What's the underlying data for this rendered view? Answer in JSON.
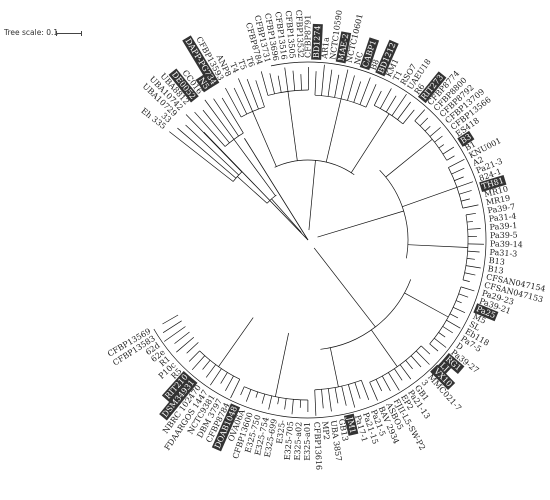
{
  "tree_scale": {
    "label": "Tree scale: 0.1"
  },
  "tree": {
    "leaves": [
      {
        "label": "Eh 335",
        "hl": false
      },
      {
        "label": "33",
        "hl": false
      },
      {
        "label": "UBA10729",
        "hl": false
      },
      {
        "label": "UBA10742",
        "hl": false
      },
      {
        "label": "UBA8812",
        "hl": false
      },
      {
        "label": "DE0052",
        "hl": true
      },
      {
        "label": "CC016",
        "hl": false
      },
      {
        "label": "N5",
        "hl": true
      },
      {
        "label": "DAPP-PG734",
        "hl": true
      },
      {
        "label": "CFBP13593",
        "hl": false
      },
      {
        "label": "ANP8",
        "hl": false
      },
      {
        "label": "T4",
        "hl": false
      },
      {
        "label": "T5",
        "hl": false
      },
      {
        "label": "T6",
        "hl": false
      },
      {
        "label": "CFBP8784",
        "hl": false
      },
      {
        "label": "CFBP13731",
        "hl": false
      },
      {
        "label": "CFBP13696",
        "hl": false
      },
      {
        "label": "CFBP13516",
        "hl": false
      },
      {
        "label": "CFBP13505",
        "hl": false
      },
      {
        "label": "CFBP13532",
        "hl": false
      },
      {
        "label": "CFBP8791",
        "hl": false
      },
      {
        "label": "BD1274",
        "hl": true
      },
      {
        "label": "AR1a",
        "hl": false
      },
      {
        "label": "NCTC10590",
        "hl": false
      },
      {
        "label": "MAE-2",
        "hl": true
      },
      {
        "label": "NCTC10601",
        "hl": false
      },
      {
        "label": "NC",
        "hl": false
      },
      {
        "label": "CABP1",
        "hl": true
      },
      {
        "label": "B8",
        "hl": false
      },
      {
        "label": "BD1212",
        "hl": true
      },
      {
        "label": "KM1",
        "hl": false
      },
      {
        "label": "T1",
        "hl": false
      },
      {
        "label": "RSO7",
        "hl": false
      },
      {
        "label": "UAEU18",
        "hl": false
      },
      {
        "label": "R6",
        "hl": false
      },
      {
        "label": "RIT273",
        "hl": true
      },
      {
        "label": "CFBP8774",
        "hl": false
      },
      {
        "label": "CFBP8800",
        "hl": false
      },
      {
        "label": "CFBP8792",
        "hl": false
      },
      {
        "label": "CFBP13709",
        "hl": false
      },
      {
        "label": "CFBP13566",
        "hl": false
      },
      {
        "label": "ES418",
        "hl": false
      },
      {
        "label": "B3",
        "hl": true
      },
      {
        "label": "B1",
        "hl": false
      },
      {
        "label": "KNU001",
        "hl": false
      },
      {
        "label": "A2",
        "hl": false
      },
      {
        "label": "Pa21-3",
        "hl": false
      },
      {
        "label": "824-1",
        "hl": false
      },
      {
        "label": "TH81",
        "hl": true
      },
      {
        "label": "MR10",
        "hl": false
      },
      {
        "label": "MR19",
        "hl": false
      },
      {
        "label": "Pa39-7",
        "hl": false
      },
      {
        "label": "Pa31-4",
        "hl": false
      },
      {
        "label": "Pa39-1",
        "hl": false
      },
      {
        "label": "Pa39-5",
        "hl": false
      },
      {
        "label": "Pa39-14",
        "hl": false
      },
      {
        "label": "Pa31-3",
        "hl": false
      },
      {
        "label": "B13",
        "hl": false
      },
      {
        "label": "B13",
        "hl": false
      },
      {
        "label": "CFSAN047154",
        "hl": false
      },
      {
        "label": "CFSAN047153",
        "hl": false
      },
      {
        "label": "Pa29-23",
        "hl": false
      },
      {
        "label": "Pa39-21",
        "hl": false
      },
      {
        "label": "Pa25",
        "hl": true
      },
      {
        "label": "M5",
        "hl": false
      },
      {
        "label": "SL",
        "hl": false
      },
      {
        "label": "Eb118",
        "hl": false
      },
      {
        "label": "Pa7-5",
        "hl": false
      },
      {
        "label": "D",
        "hl": false
      },
      {
        "label": "Pa39-27",
        "hl": false
      },
      {
        "label": "RG1",
        "hl": true
      },
      {
        "label": "LJ",
        "hl": true
      },
      {
        "label": "VX10",
        "hl": true
      },
      {
        "label": "MMC021-7",
        "hl": false
      },
      {
        "label": "3",
        "hl": false
      },
      {
        "label": "GB1",
        "hl": false
      },
      {
        "label": "Pa21-13",
        "hl": false
      },
      {
        "label": "EP2",
        "hl": false
      },
      {
        "label": "FJII-L5-SW-P2",
        "hl": false
      },
      {
        "label": "ASBO5",
        "hl": false
      },
      {
        "label": "BAV 2934",
        "hl": false
      },
      {
        "label": "Pa21-5",
        "hl": false
      },
      {
        "label": "Pa21-15",
        "hl": false
      },
      {
        "label": "Pa17-1",
        "hl": false
      },
      {
        "label": "JM1",
        "hl": true
      },
      {
        "label": "GB13",
        "hl": false
      },
      {
        "label": "UBA 3857",
        "hl": false
      },
      {
        "label": "MP2",
        "hl": false
      },
      {
        "label": "CFBP13616",
        "hl": false
      },
      {
        "label": "E325-a01",
        "hl": false
      },
      {
        "label": "E325-a02",
        "hl": false
      },
      {
        "label": "E325-705",
        "hl": false
      },
      {
        "label": "E325-",
        "hl": false
      },
      {
        "label": "E325-699",
        "hl": false
      },
      {
        "label": "E325-754",
        "hl": false
      },
      {
        "label": "E325-750",
        "hl": false
      },
      {
        "label": "CFBP13600",
        "hl": false
      },
      {
        "label": "OVA06A",
        "hl": false
      },
      {
        "label": "DOAB1048",
        "hl": true
      },
      {
        "label": "CFBP8784",
        "hl": false
      },
      {
        "label": "DBM 3797",
        "hl": false
      },
      {
        "label": "NCTC9381",
        "hl": false
      },
      {
        "label": "FDAARGOS 1447",
        "hl": false
      },
      {
        "label": "NBRC 102470",
        "hl": false
      },
      {
        "label": "DSM34931",
        "hl": true
      },
      {
        "label": "RIT210",
        "hl": true
      },
      {
        "label": "R5",
        "hl": false
      },
      {
        "label": "P10c",
        "hl": false
      },
      {
        "label": "R1",
        "hl": false
      },
      {
        "label": "62e",
        "hl": false
      },
      {
        "label": "62d",
        "hl": false
      },
      {
        "label": "CFBP13583",
        "hl": false
      },
      {
        "label": "CFBP13569",
        "hl": false
      }
    ]
  },
  "colors": {
    "highlight_bg": "#333333",
    "highlight_text": "#ffffff",
    "branch": "#111111"
  }
}
